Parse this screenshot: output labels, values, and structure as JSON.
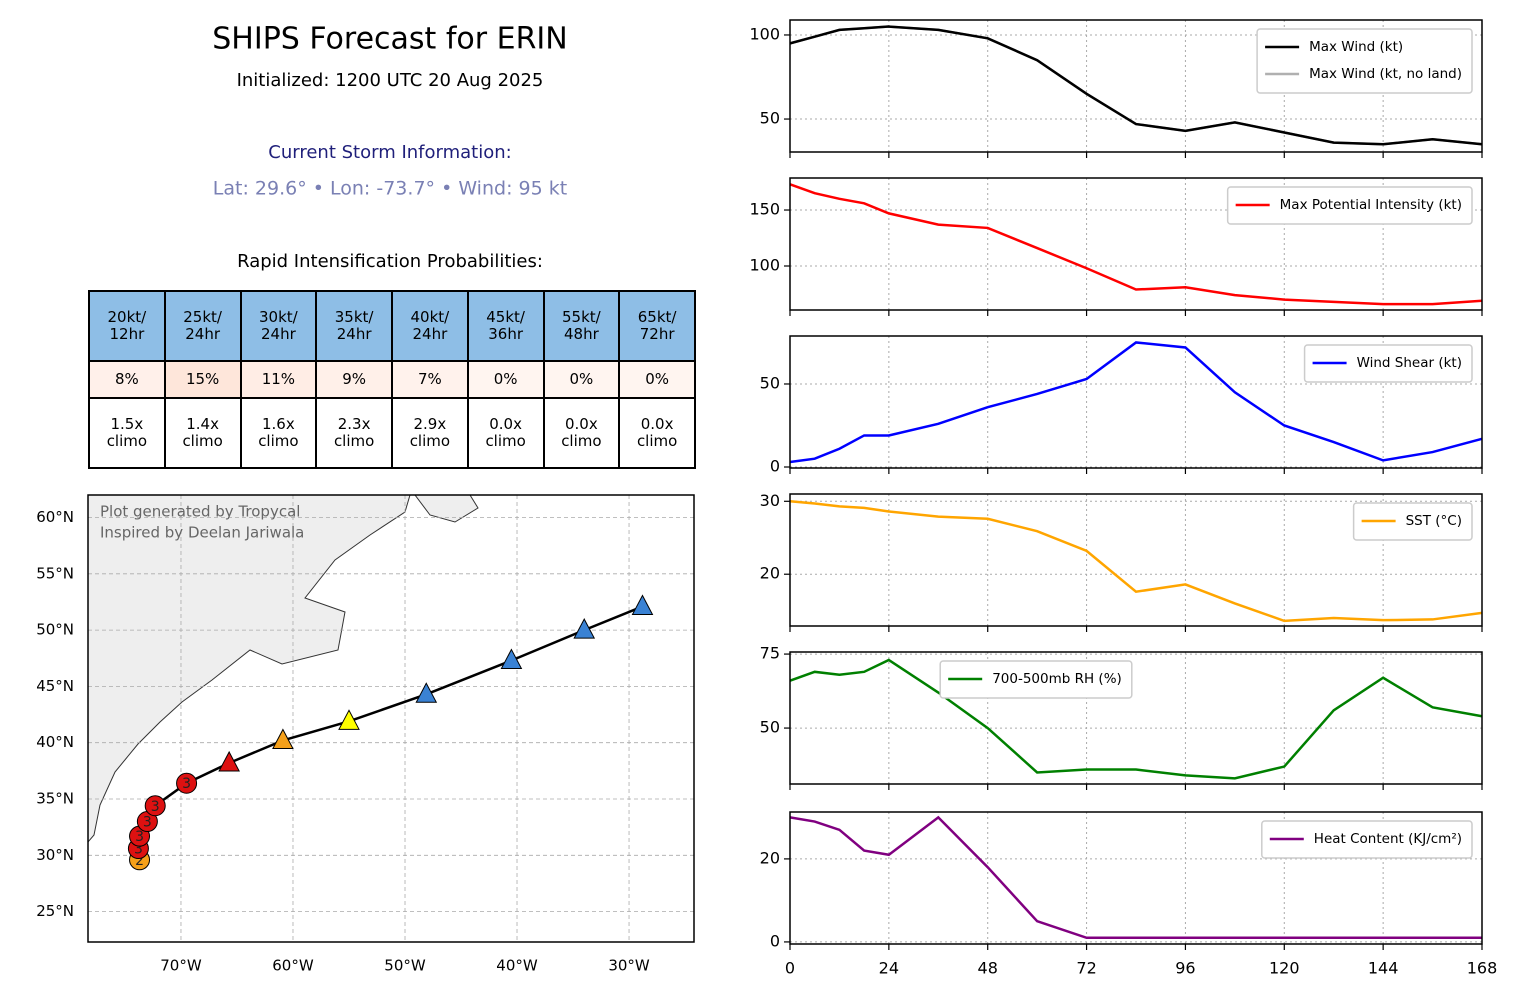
{
  "header": {
    "title": "SHIPS Forecast for ERIN",
    "subtitle": "Initialized: 1200 UTC 20 Aug 2025",
    "current_label": "Current Storm Information:",
    "current_info": "Lat: 29.6° • Lon: -73.7° • Wind: 95 kt",
    "ri_title": "Rapid Intensification Probabilities:"
  },
  "ri_table": {
    "header_color": "#8ebee6",
    "columns": [
      "20kt/\n12hr",
      "25kt/\n24hr",
      "30kt/\n24hr",
      "35kt/\n24hr",
      "40kt/\n24hr",
      "45kt/\n36hr",
      "55kt/\n48hr",
      "65kt/\n72hr"
    ],
    "probabilities": [
      "8%",
      "15%",
      "11%",
      "9%",
      "7%",
      "0%",
      "0%",
      "0%"
    ],
    "probability_colors": [
      "#fff0ea",
      "#fee6da",
      "#ffede5",
      "#fff0e9",
      "#fff2ec",
      "#fff5f0",
      "#fff5f0",
      "#fff5f0"
    ],
    "climo": [
      "1.5x\nclimo",
      "1.4x\nclimo",
      "1.6x\nclimo",
      "2.3x\nclimo",
      "2.9x\nclimo",
      "0.0x\nclimo",
      "0.0x\nclimo",
      "0.0x\nclimo"
    ]
  },
  "chart_data": [
    {
      "type": "map",
      "xlim": [
        -78.3,
        -24.2
      ],
      "ylim": [
        22.3,
        62
      ],
      "grid": true,
      "track_color": "#000000",
      "xticks": [
        {
          "value": -70,
          "label": "70°W"
        },
        {
          "value": -60,
          "label": "60°W"
        },
        {
          "value": -50,
          "label": "50°W"
        },
        {
          "value": -40,
          "label": "40°W"
        },
        {
          "value": -30,
          "label": "30°W"
        }
      ],
      "yticks": [
        {
          "value": 25,
          "label": "25°N"
        },
        {
          "value": 30,
          "label": "30°N"
        },
        {
          "value": 35,
          "label": "35°N"
        },
        {
          "value": 40,
          "label": "40°N"
        },
        {
          "value": 45,
          "label": "45°N"
        },
        {
          "value": 50,
          "label": "50°N"
        },
        {
          "value": 55,
          "label": "55°N"
        },
        {
          "value": 60,
          "label": "60°N"
        }
      ],
      "x": [
        -73.7,
        -73.8,
        -73.7,
        -73.0,
        -72.3,
        -69.5,
        -65.7,
        -60.9,
        -55.0,
        -48.1,
        -40.5,
        -34.0,
        -28.8
      ],
      "values": [
        29.6,
        30.6,
        31.7,
        33.0,
        34.4,
        36.4,
        38.2,
        40.2,
        41.9,
        44.3,
        47.3,
        50.0,
        52.1
      ],
      "colors": [
        "#f5a01a",
        "#dd1111",
        "#dd1111",
        "#dd1111",
        "#dd1111",
        "#dd1111",
        "#dd1111",
        "#f5a01a",
        "#ffff00",
        "#3a82d4",
        "#3a82d4",
        "#3a82d4",
        "#3a82d4"
      ],
      "markers": [
        "circle",
        "circle",
        "circle",
        "circle",
        "circle",
        "circle",
        "triangle",
        "triangle",
        "triangle",
        "triangle",
        "triangle",
        "triangle",
        "triangle"
      ],
      "labels": [
        "2",
        "3",
        "3",
        "3",
        "3",
        "3",
        null,
        null,
        null,
        null,
        null,
        null,
        null
      ],
      "annotations": [
        "Plot generated by Tropycal",
        "Inspired by Deelan Jariwala"
      ]
    },
    {
      "type": "line",
      "x": [
        0,
        6,
        12,
        18,
        24,
        36,
        48,
        60,
        72,
        84,
        96,
        108,
        120,
        132,
        144,
        156,
        168
      ],
      "xlim": [
        0,
        168
      ],
      "xticks": [
        0,
        24,
        48,
        72,
        96,
        120,
        144,
        168
      ],
      "ylim": [
        30.4,
        108.9
      ],
      "yticks": [
        50,
        100
      ],
      "grid": true,
      "legend": "upper right",
      "series": [
        {
          "name": "Max Wind (kt)",
          "color": "#000000",
          "values": [
            95,
            99,
            103,
            104,
            105,
            103,
            98,
            85,
            65,
            47,
            43,
            48,
            42,
            36,
            35,
            38,
            35
          ]
        },
        {
          "name": "Max Wind (kt, no land)",
          "color": "#b0b0b0",
          "values": [
            95,
            99,
            103,
            104,
            105,
            103,
            98,
            85,
            65,
            47,
            43,
            48,
            42,
            36,
            35,
            38,
            35
          ]
        }
      ]
    },
    {
      "type": "line",
      "x": [
        0,
        6,
        12,
        18,
        24,
        36,
        48,
        60,
        72,
        84,
        96,
        108,
        120,
        132,
        144,
        156,
        168
      ],
      "xlim": [
        0,
        168
      ],
      "xticks": [
        0,
        24,
        48,
        72,
        96,
        120,
        144,
        168
      ],
      "ylim": [
        60.7,
        178.6
      ],
      "yticks": [
        100,
        150
      ],
      "grid": true,
      "legend": "upper right",
      "series": [
        {
          "name": "Max Potential Intensity (kt)",
          "color": "#ff0000",
          "values": [
            173,
            165,
            160,
            156,
            147,
            137,
            134,
            116,
            98,
            79,
            81,
            74,
            70,
            68,
            66,
            66,
            69
          ]
        }
      ]
    },
    {
      "type": "line",
      "x": [
        0,
        6,
        12,
        18,
        24,
        36,
        48,
        60,
        72,
        84,
        96,
        108,
        120,
        132,
        144,
        156,
        168
      ],
      "xlim": [
        0,
        168
      ],
      "xticks": [
        0,
        24,
        48,
        72,
        96,
        120,
        144,
        168
      ],
      "ylim": [
        -0.6,
        78.9
      ],
      "yticks": [
        0,
        50
      ],
      "grid": true,
      "legend": "upper right",
      "series": [
        {
          "name": "Wind Shear (kt)",
          "color": "#0000ff",
          "values": [
            3,
            5,
            11,
            19,
            19,
            26,
            36,
            44,
            53,
            75,
            72,
            45,
            25,
            15,
            4,
            9,
            17
          ]
        }
      ]
    },
    {
      "type": "line",
      "x": [
        0,
        6,
        12,
        18,
        24,
        36,
        48,
        60,
        72,
        84,
        96,
        108,
        120,
        132,
        144,
        156,
        168
      ],
      "xlim": [
        0,
        168
      ],
      "xticks": [
        0,
        24,
        48,
        72,
        96,
        120,
        144,
        168
      ],
      "ylim": [
        12.9,
        31
      ],
      "yticks": [
        20,
        30
      ],
      "grid": true,
      "legend": "upper right",
      "series": [
        {
          "name": "SST (°C)",
          "color": "#ffa500",
          "values": [
            30,
            29.7,
            29.3,
            29.1,
            28.6,
            27.9,
            27.6,
            25.9,
            23.2,
            17.6,
            18.6,
            16,
            13.6,
            14,
            13.7,
            13.8,
            14.7
          ]
        }
      ]
    },
    {
      "type": "line",
      "x": [
        0,
        6,
        12,
        18,
        24,
        36,
        48,
        60,
        72,
        84,
        96,
        108,
        120,
        132,
        144,
        156,
        168
      ],
      "xlim": [
        0,
        168
      ],
      "xticks": [
        0,
        24,
        48,
        72,
        96,
        120,
        144,
        168
      ],
      "ylim": [
        31.1,
        75.7
      ],
      "yticks": [
        50,
        75
      ],
      "grid": true,
      "legend": "upper center",
      "series": [
        {
          "name": "700-500mb RH (%)",
          "color": "#008000",
          "values": [
            66,
            69,
            68,
            69,
            73,
            62,
            50,
            35,
            36,
            36,
            34,
            33,
            37,
            56,
            67,
            57,
            54
          ]
        }
      ]
    },
    {
      "type": "line",
      "x": [
        0,
        6,
        12,
        18,
        24,
        36,
        48,
        60,
        72,
        84,
        96,
        108,
        120,
        132,
        144,
        156,
        168
      ],
      "xlim": [
        0,
        168
      ],
      "xticks": [
        0,
        24,
        48,
        72,
        96,
        120,
        144,
        168
      ],
      "ylim": [
        -0.5,
        31.3
      ],
      "yticks": [
        0,
        20
      ],
      "grid": true,
      "legend": "upper right",
      "show_xtick_labels": true,
      "series": [
        {
          "name": "Heat Content (KJ/cm²)",
          "color": "#800080",
          "values": [
            30,
            29,
            27,
            22,
            21,
            30,
            18,
            5,
            1,
            1,
            1,
            1,
            1,
            1,
            1,
            1,
            1
          ]
        }
      ]
    }
  ]
}
